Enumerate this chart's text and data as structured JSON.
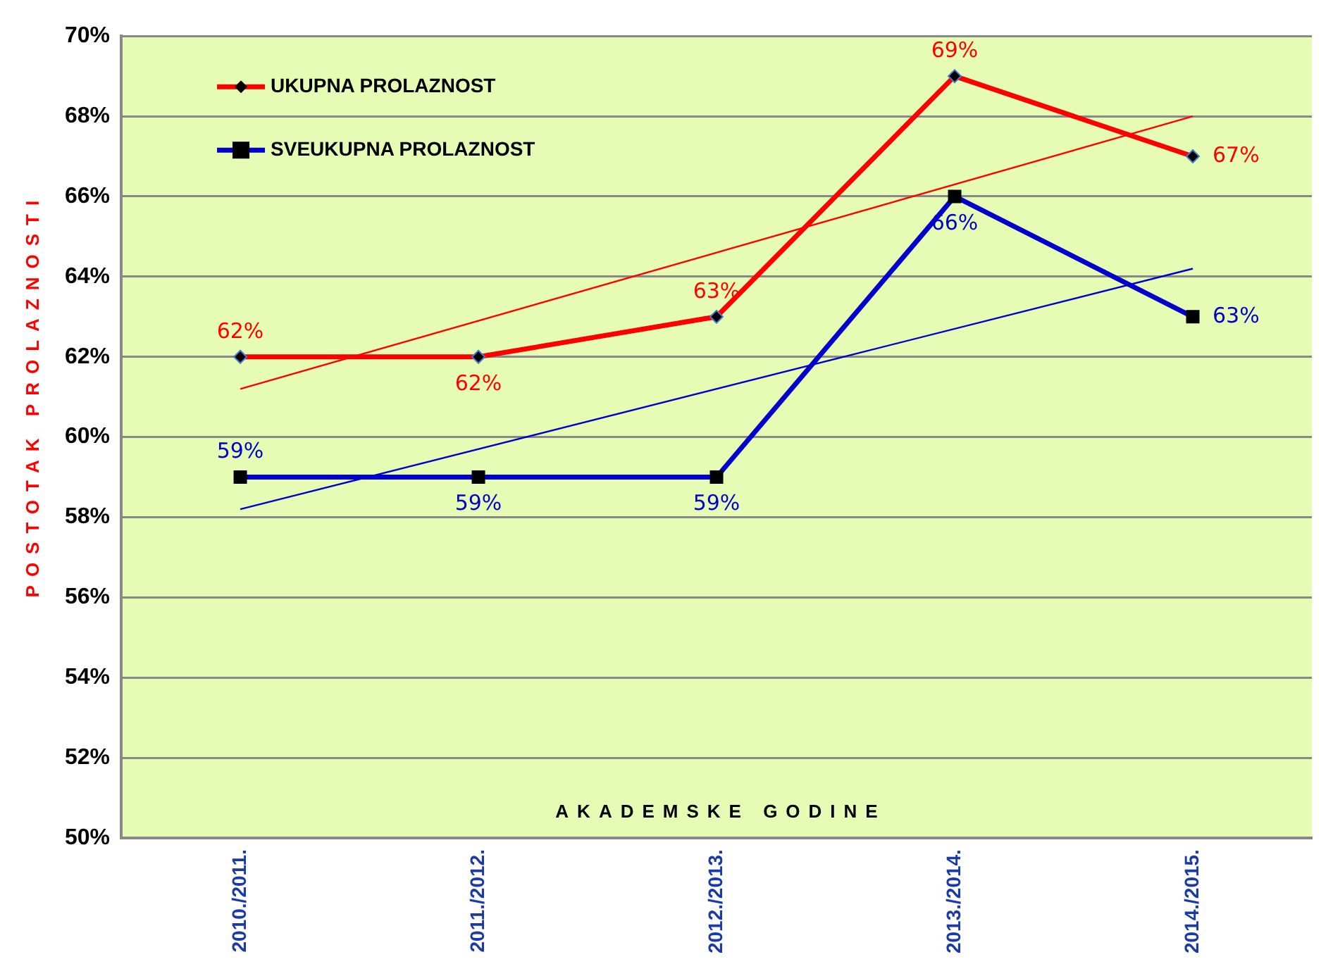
{
  "chart_data": {
    "type": "line",
    "xlabel": "AKADEMSKE GODINE",
    "ylabel": "POSTOTAK PROLAZNOSTI",
    "categories": [
      "2010./2011.",
      "2011./2012.",
      "2012./2013.",
      "2013./2014.",
      "2014./2015."
    ],
    "series": [
      {
        "name": "UKUPNA PROLAZNOST",
        "color": "#ff0000",
        "marker": "diamond",
        "values": [
          62,
          62,
          63,
          69,
          67
        ],
        "value_labels": [
          "62%",
          "62%",
          "63%",
          "69%",
          "67%"
        ]
      },
      {
        "name": "SVEUKUPNA PROLAZNOST",
        "color": "#0000cc",
        "marker": "square",
        "values": [
          59,
          59,
          59,
          66,
          63
        ],
        "value_labels": [
          "59%",
          "59%",
          "59%",
          "66%",
          "63%"
        ]
      },
      {
        "type": "line",
        "color": "#ff0000",
        "marker": "none",
        "values": [
          61.2,
          null,
          null,
          null,
          68
        ]
      },
      {
        "type": "line",
        "color": "#0000cc",
        "marker": "none",
        "values": [
          58.2,
          null,
          null,
          null,
          64.2
        ]
      }
    ],
    "ylim": [
      50,
      70
    ],
    "yticks": [
      {
        "value": 50,
        "label": "50%"
      },
      {
        "value": 52,
        "label": "52%"
      },
      {
        "value": 54,
        "label": "54%"
      },
      {
        "value": 56,
        "label": "56%"
      },
      {
        "value": 58,
        "label": "58%"
      },
      {
        "value": 60,
        "label": "60%"
      },
      {
        "value": 62,
        "label": "62%"
      },
      {
        "value": 64,
        "label": "64%"
      },
      {
        "value": 66,
        "label": "66%"
      },
      {
        "value": 68,
        "label": "68%"
      },
      {
        "value": 70,
        "label": "70%"
      }
    ],
    "grid": "y",
    "legend": "top left"
  }
}
